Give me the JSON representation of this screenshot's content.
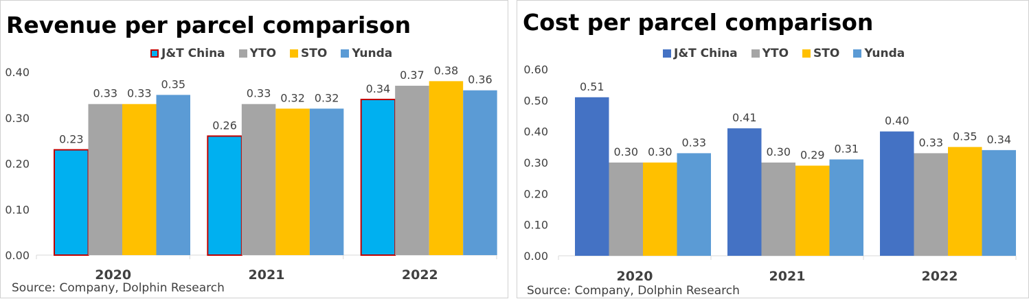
{
  "chart_data": [
    {
      "type": "bar",
      "title": "Revenue per parcel comparison",
      "categories": [
        "2020",
        "2021",
        "2022"
      ],
      "series": [
        {
          "name": "J&T China",
          "values": [
            0.23,
            0.26,
            0.34
          ],
          "color": "#00B0F0",
          "border": "#C00000"
        },
        {
          "name": "YTO",
          "values": [
            0.33,
            0.33,
            0.37
          ],
          "color": "#A5A5A5"
        },
        {
          "name": "STO",
          "values": [
            0.33,
            0.32,
            0.38
          ],
          "color": "#FFC000"
        },
        {
          "name": "Yunda",
          "values": [
            0.35,
            0.32,
            0.36
          ],
          "color": "#5B9BD5"
        }
      ],
      "ylim": [
        0,
        0.4
      ],
      "yticks": [
        "0.00",
        "0.10",
        "0.20",
        "0.30",
        "0.40"
      ],
      "xlabel": "",
      "ylabel": "",
      "legend": "top",
      "grid": false,
      "source": "Source: Company, Dolphin Research"
    },
    {
      "type": "bar",
      "title": "Cost per parcel comparison",
      "categories": [
        "2020",
        "2021",
        "2022"
      ],
      "series": [
        {
          "name": "J&T China",
          "values": [
            0.51,
            0.41,
            0.4
          ],
          "color": "#4472C4"
        },
        {
          "name": "YTO",
          "values": [
            0.3,
            0.3,
            0.33
          ],
          "color": "#A5A5A5"
        },
        {
          "name": "STO",
          "values": [
            0.3,
            0.29,
            0.35
          ],
          "color": "#FFC000"
        },
        {
          "name": "Yunda",
          "values": [
            0.33,
            0.31,
            0.34
          ],
          "color": "#5B9BD5"
        }
      ],
      "ylim": [
        0,
        0.6
      ],
      "yticks": [
        "0.00",
        "0.10",
        "0.20",
        "0.30",
        "0.40",
        "0.50",
        "0.60"
      ],
      "xlabel": "",
      "ylabel": "",
      "legend": "top",
      "grid": false,
      "source": "Source: Company, Dolphin Research"
    }
  ]
}
